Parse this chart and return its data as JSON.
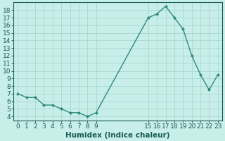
{
  "x": [
    0,
    1,
    2,
    3,
    4,
    5,
    6,
    7,
    8,
    9,
    15,
    16,
    17,
    18,
    19,
    20,
    21,
    22,
    23
  ],
  "y": [
    7.0,
    6.5,
    6.5,
    5.5,
    5.5,
    5.0,
    4.5,
    4.5,
    4.0,
    4.5,
    17.0,
    17.5,
    18.5,
    17.0,
    15.5,
    12.0,
    9.5,
    7.5,
    9.5
  ],
  "line_color": "#2e8b7a",
  "marker": "D",
  "marker_size": 2,
  "bg_color": "#c8eeea",
  "grid_color": "#a8d8d0",
  "xlabel": "Humidex (Indice chaleur)",
  "xlim": [
    -0.5,
    23.5
  ],
  "ylim": [
    3.5,
    19.0
  ],
  "xticks": [
    0,
    1,
    2,
    3,
    4,
    5,
    6,
    7,
    8,
    9,
    15,
    16,
    17,
    18,
    19,
    20,
    21,
    22,
    23
  ],
  "yticks": [
    4,
    5,
    6,
    7,
    8,
    9,
    10,
    11,
    12,
    13,
    14,
    15,
    16,
    17,
    18
  ],
  "tick_fontsize": 6.5,
  "xlabel_fontsize": 7.5,
  "tick_color": "#1a5c50",
  "spine_color": "#1a5c50",
  "linewidth": 1.0
}
